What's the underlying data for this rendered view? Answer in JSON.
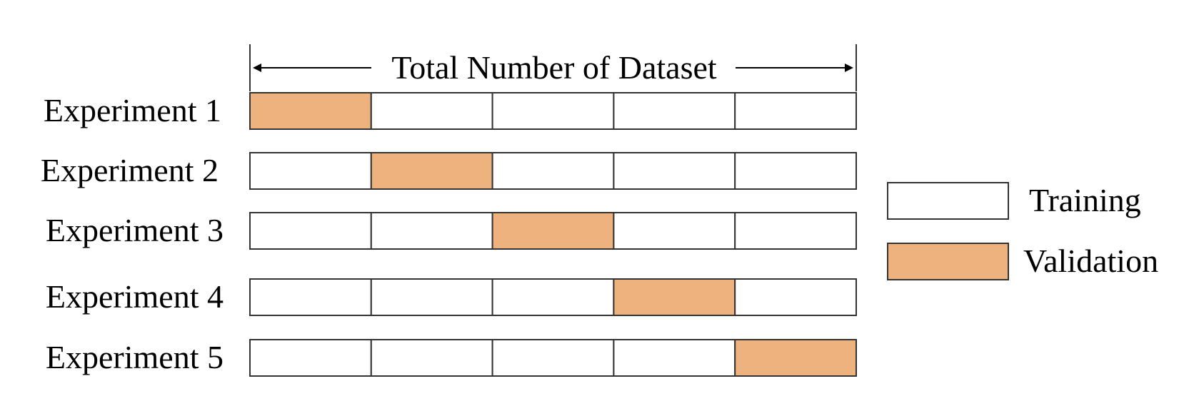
{
  "diagram": {
    "header": {
      "text": "Total Number of Dataset"
    },
    "experiments": [
      {
        "label": "Experiment 1",
        "validation_fold": 1
      },
      {
        "label": "Experiment 2",
        "validation_fold": 2
      },
      {
        "label": "Experiment 3",
        "validation_fold": 3
      },
      {
        "label": "Experiment 4",
        "validation_fold": 4
      },
      {
        "label": "Experiment 5",
        "validation_fold": 5
      }
    ],
    "folds_per_experiment": 5,
    "legend": {
      "items": [
        {
          "label": "Training",
          "kind": "training"
        },
        {
          "label": "Validation",
          "kind": "validation"
        }
      ]
    },
    "colors": {
      "training": "#ffffff",
      "validation": "#edb27e",
      "stroke": "#333333"
    }
  }
}
